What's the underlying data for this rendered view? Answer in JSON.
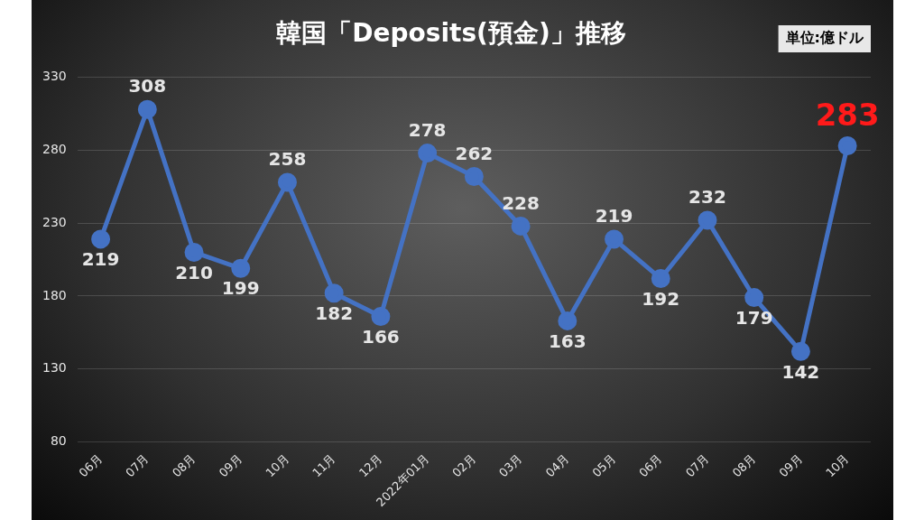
{
  "chart_data": {
    "type": "line",
    "title": "韓国「Deposits(預金)」推移",
    "categories": [
      "06月",
      "07月",
      "08月",
      "09月",
      "10月",
      "11月",
      "12月",
      "2022年01月",
      "02月",
      "03月",
      "04月",
      "05月",
      "06月",
      "07月",
      "08月",
      "09月",
      "10月"
    ],
    "series": [
      {
        "color": "#4472c4",
        "values": [
          219,
          308,
          210,
          199,
          258,
          182,
          166,
          278,
          262,
          228,
          163,
          219,
          192,
          232,
          179,
          142,
          283
        ],
        "value_labels": [
          "219",
          "308",
          "210",
          "199",
          "258",
          "182",
          "166",
          "278",
          "262",
          "228",
          "163",
          "219",
          "192",
          "232",
          "179",
          "142",
          "283"
        ]
      }
    ],
    "annotations": [
      "単位:億ドル"
    ],
    "ylim": [
      80,
      330
    ],
    "yticks": [
      80,
      130,
      180,
      230,
      280,
      330
    ],
    "grid": "y",
    "legend": false,
    "marker": "circle",
    "line_style": "solid"
  }
}
